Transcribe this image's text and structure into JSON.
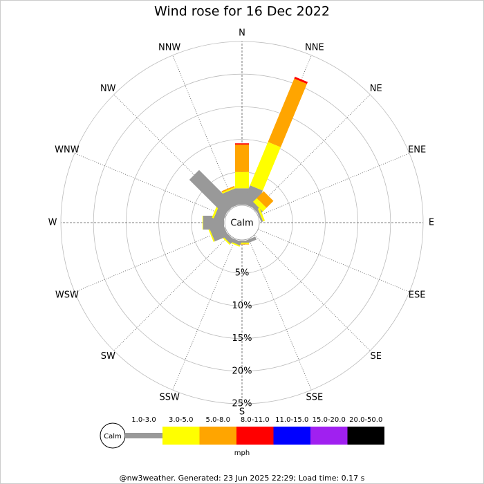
{
  "chart_data": {
    "type": "wind_rose",
    "title": "Wind rose for 16 Dec 2022",
    "categories": [
      "N",
      "NNE",
      "NE",
      "ENE",
      "E",
      "ESE",
      "SE",
      "SSE",
      "S",
      "SSW",
      "SW",
      "WSW",
      "W",
      "WNW",
      "NW",
      "NNW"
    ],
    "series": [
      {
        "name": "1.0-3.0",
        "color": "#999999",
        "values": [
          2.5,
          3,
          0.7,
          0.3,
          0,
          0,
          0,
          0.5,
          0.3,
          0.6,
          0.8,
          2.2,
          3.2,
          1.5,
          7.6,
          2.5
        ]
      },
      {
        "name": "3.0-5.0",
        "color": "#ffff00",
        "values": [
          2.5,
          7.2,
          0.8,
          0.3,
          0,
          0,
          0,
          0,
          0.2,
          0.2,
          0.2,
          0.2,
          0.1,
          0.3,
          0,
          0.2
        ]
      },
      {
        "name": "5.0-8.0",
        "color": "#ffa500",
        "values": [
          4.2,
          10.5,
          1.5,
          0,
          0,
          0,
          0,
          0,
          0.1,
          0,
          0,
          0,
          0,
          0,
          0,
          0.2
        ]
      },
      {
        "name": "8.0-11.0",
        "color": "#ff0000",
        "values": [
          0.2,
          0.3,
          0,
          0,
          0,
          0,
          0,
          0,
          0,
          0,
          0,
          0,
          0,
          0,
          0,
          0
        ]
      },
      {
        "name": "11.0-15.0",
        "color": "#0000ff",
        "values": [
          0,
          0,
          0,
          0,
          0,
          0,
          0,
          0,
          0,
          0,
          0,
          0,
          0,
          0,
          0,
          0
        ]
      },
      {
        "name": "15.0-20.0",
        "color": "#a020f0",
        "values": [
          0,
          0,
          0,
          0,
          0,
          0,
          0,
          0,
          0,
          0,
          0,
          0,
          0,
          0,
          0,
          0
        ]
      },
      {
        "name": "20.0-50.0",
        "color": "#000000",
        "values": [
          0,
          0,
          0,
          0,
          0,
          0,
          0,
          0,
          0,
          0,
          0,
          0,
          0,
          0,
          0,
          0
        ]
      }
    ],
    "rlim": [
      0,
      25
    ],
    "rticks": [
      {
        "value": 5,
        "label": "5%"
      },
      {
        "value": 10,
        "label": "10%"
      },
      {
        "value": 15,
        "label": "15%"
      },
      {
        "value": 20,
        "label": "20%"
      },
      {
        "value": 25,
        "label": "25%"
      }
    ],
    "calm_label": "Calm",
    "unit": "mph",
    "footer": "@nw3weather. Generated: 23 Jun 2025 22:29; Load time: 0.17 s"
  }
}
